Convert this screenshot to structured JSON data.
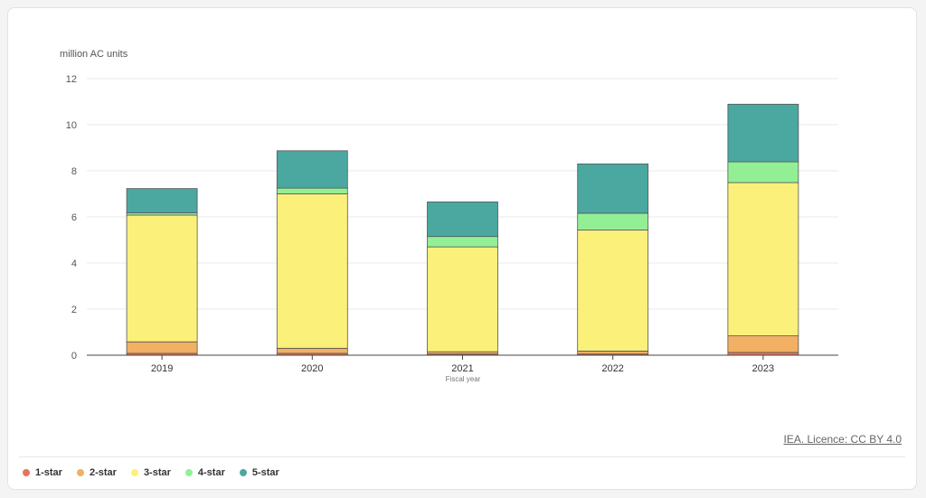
{
  "chart_data": {
    "type": "bar",
    "stacked": true,
    "ylabel": "million AC units",
    "xlabel": "Fiscal year",
    "categories": [
      "2019",
      "2020",
      "2021",
      "2022",
      "2023"
    ],
    "ylim": [
      0,
      12
    ],
    "yticks": [
      0,
      2,
      4,
      6,
      8,
      10,
      12
    ],
    "grid": true,
    "legend_position": "bottom-left",
    "series": [
      {
        "name": "1-star",
        "color": "#e8735a",
        "values": [
          0.08,
          0.08,
          0.05,
          0.05,
          0.12
        ]
      },
      {
        "name": "2-star",
        "color": "#f1b063",
        "values": [
          0.5,
          0.22,
          0.1,
          0.13,
          0.72
        ]
      },
      {
        "name": "3-star",
        "color": "#fbf07a",
        "values": [
          5.5,
          6.7,
          4.55,
          5.25,
          6.65
        ]
      },
      {
        "name": "4-star",
        "color": "#93ef96",
        "values": [
          0.1,
          0.25,
          0.45,
          0.73,
          0.9
        ]
      },
      {
        "name": "5-star",
        "color": "#4ba8a0",
        "values": [
          1.05,
          1.62,
          1.5,
          2.14,
          2.5
        ]
      }
    ]
  },
  "credit": "IEA. Licence: CC BY 4.0"
}
